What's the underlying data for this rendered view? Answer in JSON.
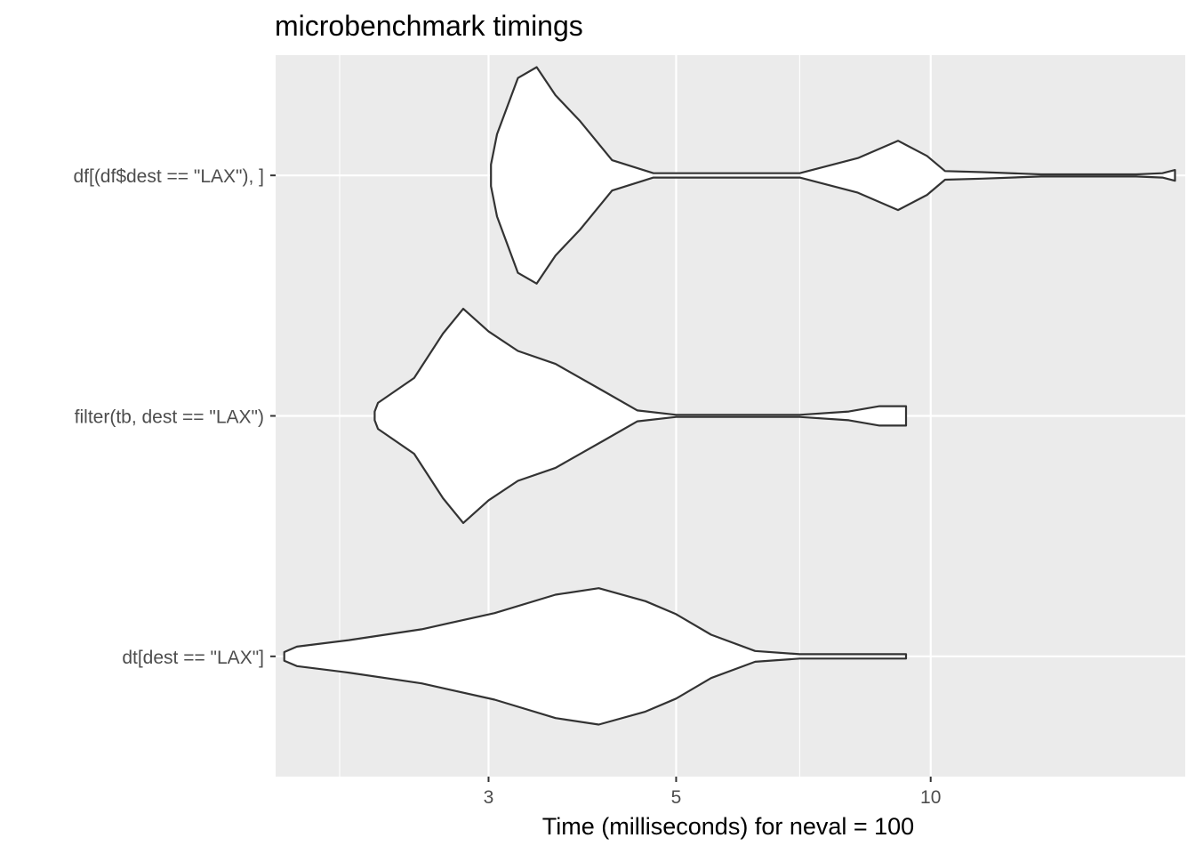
{
  "chart_data": {
    "type": "violin",
    "title": "microbenchmark timings",
    "xlabel": "Time (milliseconds) for neval = 100",
    "ylabel": "",
    "x_scale": "log10",
    "xlim": [
      1.68,
      20.0
    ],
    "x_major_ticks": [
      3,
      5,
      10
    ],
    "x_minor_ticks": [
      2.0,
      7.0
    ],
    "grid": true,
    "legend": "none",
    "colors": {
      "panel": "#ebebeb",
      "grid": "#ffffff",
      "violin_fill": "#ffffff",
      "violin_outline": "#333333",
      "tick_label": "#4d4d4d"
    },
    "categories": [
      "dt[dest == \"LAX\"]",
      "filter(tb, dest == \"LAX\")",
      "df[(df$dest == \"LAX\"), ]"
    ],
    "series": [
      {
        "category": "dt[dest == \"LAX\"]",
        "profile": [
          [
            1.72,
            0.04
          ],
          [
            1.78,
            0.09
          ],
          [
            2.05,
            0.15
          ],
          [
            2.5,
            0.25
          ],
          [
            3.05,
            0.4
          ],
          [
            3.6,
            0.57
          ],
          [
            4.05,
            0.63
          ],
          [
            4.6,
            0.51
          ],
          [
            5.0,
            0.39
          ],
          [
            5.5,
            0.2
          ],
          [
            6.2,
            0.05
          ],
          [
            7.0,
            0.02
          ],
          [
            8.5,
            0.02
          ],
          [
            9.0,
            0.02
          ],
          [
            9.35,
            0.02
          ]
        ]
      },
      {
        "category": "filter(tb, dest == \"LAX\")",
        "profile": [
          [
            2.2,
            0.04
          ],
          [
            2.22,
            0.12
          ],
          [
            2.45,
            0.35
          ],
          [
            2.65,
            0.76
          ],
          [
            2.8,
            0.99
          ],
          [
            3.0,
            0.78
          ],
          [
            3.25,
            0.6
          ],
          [
            3.6,
            0.48
          ],
          [
            4.1,
            0.23
          ],
          [
            4.5,
            0.05
          ],
          [
            5.0,
            0.01
          ],
          [
            7.0,
            0.01
          ],
          [
            8.0,
            0.04
          ],
          [
            8.7,
            0.09
          ],
          [
            9.35,
            0.09
          ]
        ]
      },
      {
        "category": "df[(df$dest == \"LAX\"), ]",
        "profile": [
          [
            3.02,
            0.1
          ],
          [
            3.07,
            0.38
          ],
          [
            3.25,
            0.9
          ],
          [
            3.42,
            1.0
          ],
          [
            3.6,
            0.74
          ],
          [
            3.85,
            0.5
          ],
          [
            4.2,
            0.14
          ],
          [
            4.7,
            0.02
          ],
          [
            7.0,
            0.02
          ],
          [
            8.2,
            0.16
          ],
          [
            9.15,
            0.32
          ],
          [
            9.9,
            0.18
          ],
          [
            10.4,
            0.04
          ],
          [
            11.5,
            0.03
          ],
          [
            13.5,
            0.01
          ],
          [
            17.5,
            0.01
          ],
          [
            18.8,
            0.02
          ],
          [
            19.45,
            0.05
          ]
        ]
      }
    ]
  }
}
